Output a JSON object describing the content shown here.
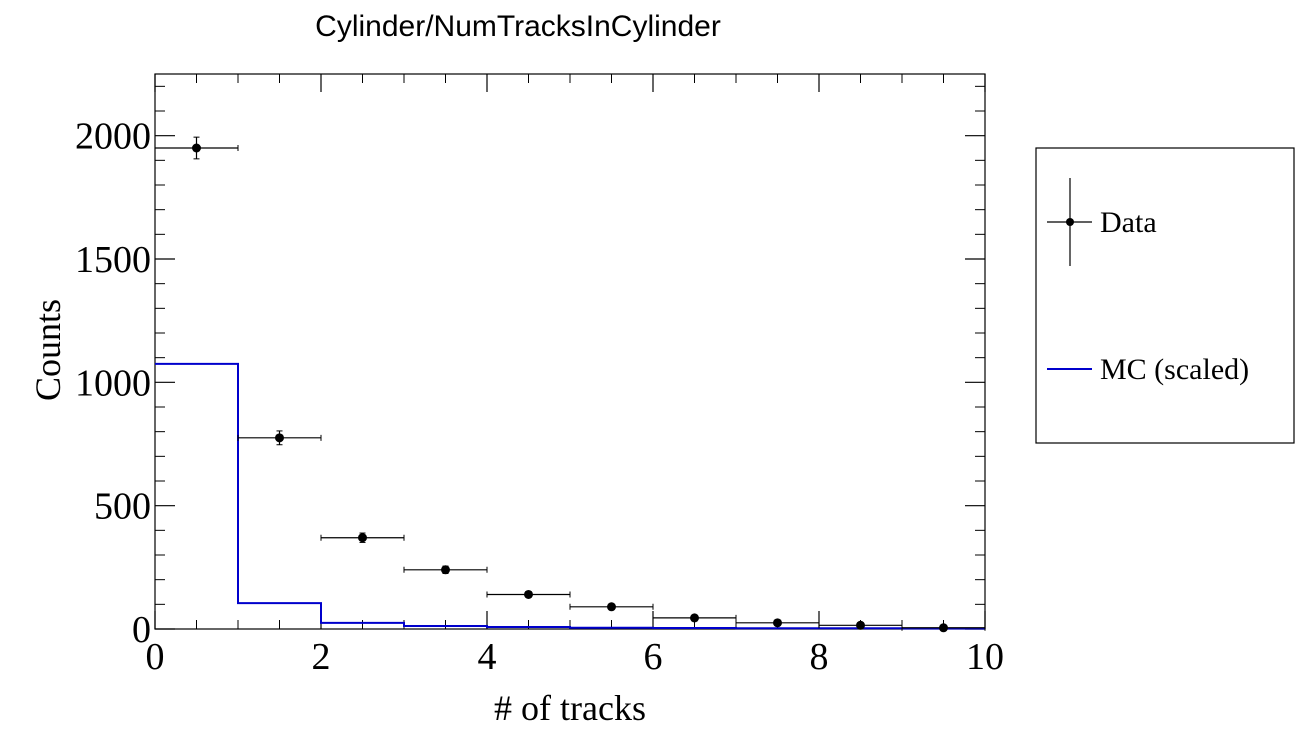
{
  "chart_data": {
    "type": "histogram",
    "title": "Cylinder/NumTracksInCylinder",
    "xlabel": "# of tracks",
    "ylabel": "Counts",
    "xlim": [
      0,
      10
    ],
    "ylim": [
      0,
      2250
    ],
    "x_ticks": [
      0,
      2,
      4,
      6,
      8,
      10
    ],
    "y_ticks": [
      0,
      500,
      1000,
      1500,
      2000
    ],
    "bin_edges": [
      0,
      1,
      2,
      3,
      4,
      5,
      6,
      7,
      8,
      9,
      10
    ],
    "series": [
      {
        "name": "Data",
        "style": "points-with-errors",
        "color": "#000000",
        "x": [
          0.5,
          1.5,
          2.5,
          3.5,
          4.5,
          5.5,
          6.5,
          7.5,
          8.5,
          9.5
        ],
        "y": [
          1950,
          775,
          370,
          240,
          140,
          90,
          45,
          25,
          15,
          5
        ],
        "yerr": [
          44,
          28,
          19,
          15,
          12,
          9,
          7,
          5,
          4,
          2
        ]
      },
      {
        "name": "MC (scaled)",
        "style": "step",
        "color": "#0000cc",
        "values": [
          1075,
          105,
          25,
          12,
          8,
          5,
          4,
          3,
          3,
          2
        ]
      }
    ],
    "legend_placement": "right-outside",
    "grid": false
  }
}
